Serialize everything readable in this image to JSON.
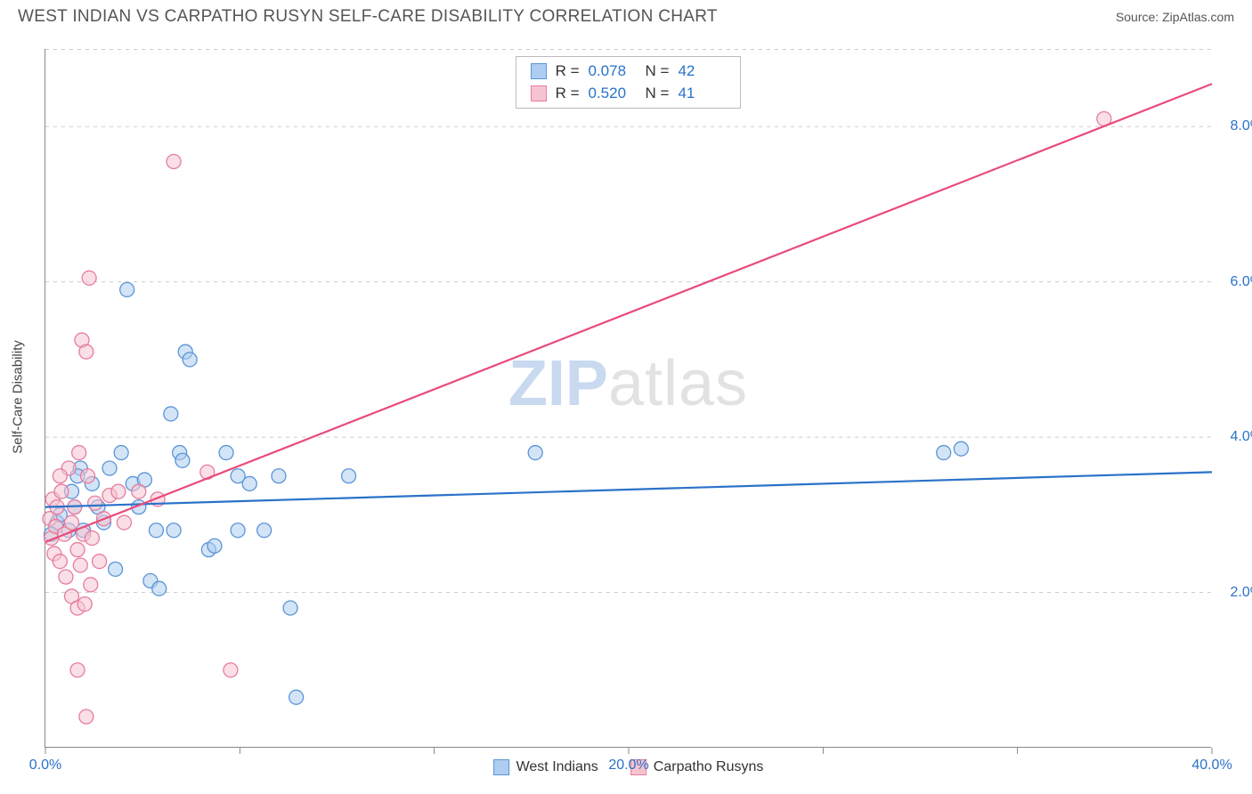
{
  "header": {
    "title": "WEST INDIAN VS CARPATHO RUSYN SELF-CARE DISABILITY CORRELATION CHART",
    "source_label": "Source: ZipAtlas.com"
  },
  "chart": {
    "type": "scatter",
    "y_axis_title": "Self-Care Disability",
    "xlim": [
      0,
      40
    ],
    "ylim": [
      0,
      9
    ],
    "y_ticks": [
      2.0,
      4.0,
      6.0,
      8.0
    ],
    "y_tick_format": "%",
    "x_ticks_major": [
      0,
      20,
      40
    ],
    "x_ticks_minor": [
      6.67,
      13.33,
      26.67,
      33.33
    ],
    "grid_color": "#cccccc",
    "axis_color": "#888888",
    "background_color": "#ffffff",
    "tick_label_color": "#2a72c9",
    "marker_radius": 8,
    "marker_opacity": 0.55,
    "line_width": 2.2,
    "watermark": {
      "zip": "ZIP",
      "rest": "atlas"
    },
    "series": [
      {
        "id": "west_indians",
        "label": "West Indians",
        "color_fill": "#aecdf0",
        "color_stroke": "#5b95d6",
        "line_color": "#2a72c9",
        "r_value": "0.078",
        "n_value": "42",
        "trend": {
          "x1": 0,
          "y1": 3.1,
          "x2": 40,
          "y2": 3.55
        },
        "points": [
          [
            0.4,
            2.9
          ],
          [
            0.5,
            3.0
          ],
          [
            0.8,
            2.8
          ],
          [
            0.9,
            3.3
          ],
          [
            1.0,
            3.1
          ],
          [
            1.2,
            3.6
          ],
          [
            1.3,
            2.8
          ],
          [
            1.6,
            3.4
          ],
          [
            1.8,
            3.1
          ],
          [
            2.0,
            2.9
          ],
          [
            2.2,
            3.6
          ],
          [
            2.4,
            2.3
          ],
          [
            2.6,
            3.8
          ],
          [
            2.8,
            5.9
          ],
          [
            3.0,
            3.4
          ],
          [
            3.2,
            3.1
          ],
          [
            3.4,
            3.45
          ],
          [
            3.6,
            2.15
          ],
          [
            3.8,
            2.8
          ],
          [
            3.9,
            2.05
          ],
          [
            4.3,
            4.3
          ],
          [
            4.4,
            2.8
          ],
          [
            4.6,
            3.8
          ],
          [
            4.7,
            3.7
          ],
          [
            4.8,
            5.1
          ],
          [
            4.95,
            5.0
          ],
          [
            5.6,
            2.55
          ],
          [
            5.8,
            2.6
          ],
          [
            6.2,
            3.8
          ],
          [
            6.6,
            3.5
          ],
          [
            6.6,
            2.8
          ],
          [
            7.0,
            3.4
          ],
          [
            7.5,
            2.8
          ],
          [
            8.0,
            3.5
          ],
          [
            8.4,
            1.8
          ],
          [
            8.6,
            0.65
          ],
          [
            10.4,
            3.5
          ],
          [
            16.8,
            3.8
          ],
          [
            30.8,
            3.8
          ],
          [
            31.4,
            3.85
          ],
          [
            0.2,
            2.75
          ],
          [
            1.1,
            3.5
          ]
        ]
      },
      {
        "id": "carpatho_rusyns",
        "label": "Carpatho Rusyns",
        "color_fill": "#f6c4d1",
        "color_stroke": "#e67d9f",
        "line_color": "#e94b7a",
        "r_value": "0.520",
        "n_value": "41",
        "trend": {
          "x1": 0,
          "y1": 2.65,
          "x2": 40,
          "y2": 8.55
        },
        "points": [
          [
            0.15,
            2.95
          ],
          [
            0.2,
            2.7
          ],
          [
            0.25,
            3.2
          ],
          [
            0.3,
            2.5
          ],
          [
            0.35,
            2.85
          ],
          [
            0.4,
            3.1
          ],
          [
            0.5,
            2.4
          ],
          [
            0.55,
            3.3
          ],
          [
            0.65,
            2.75
          ],
          [
            0.7,
            2.2
          ],
          [
            0.8,
            3.6
          ],
          [
            0.9,
            2.9
          ],
          [
            0.9,
            1.95
          ],
          [
            1.0,
            3.1
          ],
          [
            1.1,
            1.8
          ],
          [
            1.1,
            2.55
          ],
          [
            1.1,
            1.0
          ],
          [
            1.15,
            3.8
          ],
          [
            1.2,
            2.35
          ],
          [
            1.25,
            5.25
          ],
          [
            1.3,
            2.75
          ],
          [
            1.35,
            1.85
          ],
          [
            1.4,
            5.1
          ],
          [
            1.4,
            0.4
          ],
          [
            1.45,
            3.5
          ],
          [
            1.5,
            6.05
          ],
          [
            1.55,
            2.1
          ],
          [
            1.6,
            2.7
          ],
          [
            1.7,
            3.15
          ],
          [
            1.85,
            2.4
          ],
          [
            2.0,
            2.95
          ],
          [
            2.2,
            3.25
          ],
          [
            2.5,
            3.3
          ],
          [
            2.7,
            2.9
          ],
          [
            3.2,
            3.3
          ],
          [
            3.85,
            3.2
          ],
          [
            4.4,
            7.55
          ],
          [
            5.55,
            3.55
          ],
          [
            6.35,
            1.0
          ],
          [
            36.3,
            8.1
          ],
          [
            0.5,
            3.5
          ]
        ]
      }
    ],
    "legend": {
      "series1_label": "West Indians",
      "series2_label": "Carpatho Rusyns",
      "r_label": "R =",
      "n_label": "N ="
    }
  }
}
